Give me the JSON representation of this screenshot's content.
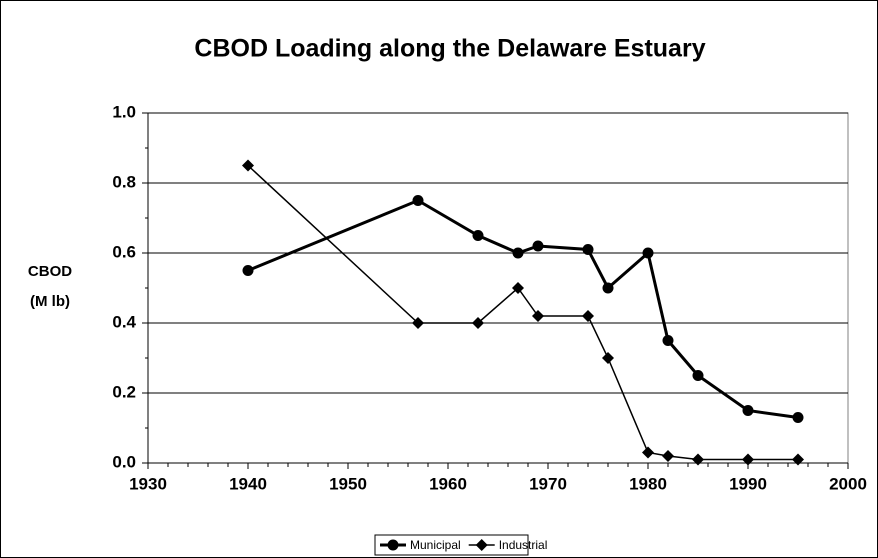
{
  "chart_data": {
    "type": "line",
    "title": "CBOD Loading along the Delaware Estuary",
    "ylabel": [
      "CBOD",
      "(M lb)"
    ],
    "x": [
      1940,
      1957,
      1963,
      1967,
      1969,
      1974,
      1976,
      1980,
      1982,
      1985,
      1990,
      1995
    ],
    "series": [
      {
        "name": "Municipal",
        "color": "#000000",
        "marker": "circle",
        "values": [
          0.55,
          0.75,
          0.65,
          0.6,
          0.62,
          0.61,
          0.5,
          0.6,
          0.35,
          0.25,
          0.15,
          0.13
        ]
      },
      {
        "name": "Industrial",
        "color": "#000000",
        "marker": "diamond",
        "values": [
          0.85,
          0.4,
          0.4,
          0.5,
          0.42,
          0.42,
          0.3,
          0.03,
          0.02,
          0.01,
          0.01,
          0.01
        ]
      }
    ],
    "xlim": [
      1930,
      2000
    ],
    "xticks": [
      1930,
      1940,
      1950,
      1960,
      1970,
      1980,
      1990,
      2000
    ],
    "ylim": [
      0,
      1
    ],
    "yticks": [
      {
        "value": 0,
        "label": "0.0"
      },
      {
        "value": 0.2,
        "label": "0.2"
      },
      {
        "value": 0.4,
        "label": "0.4"
      },
      {
        "value": 0.6,
        "label": "0.6"
      },
      {
        "value": 0.8,
        "label": "0.8"
      },
      {
        "value": 1,
        "label": "1.0"
      }
    ],
    "grid": true,
    "legend": "bottom"
  }
}
